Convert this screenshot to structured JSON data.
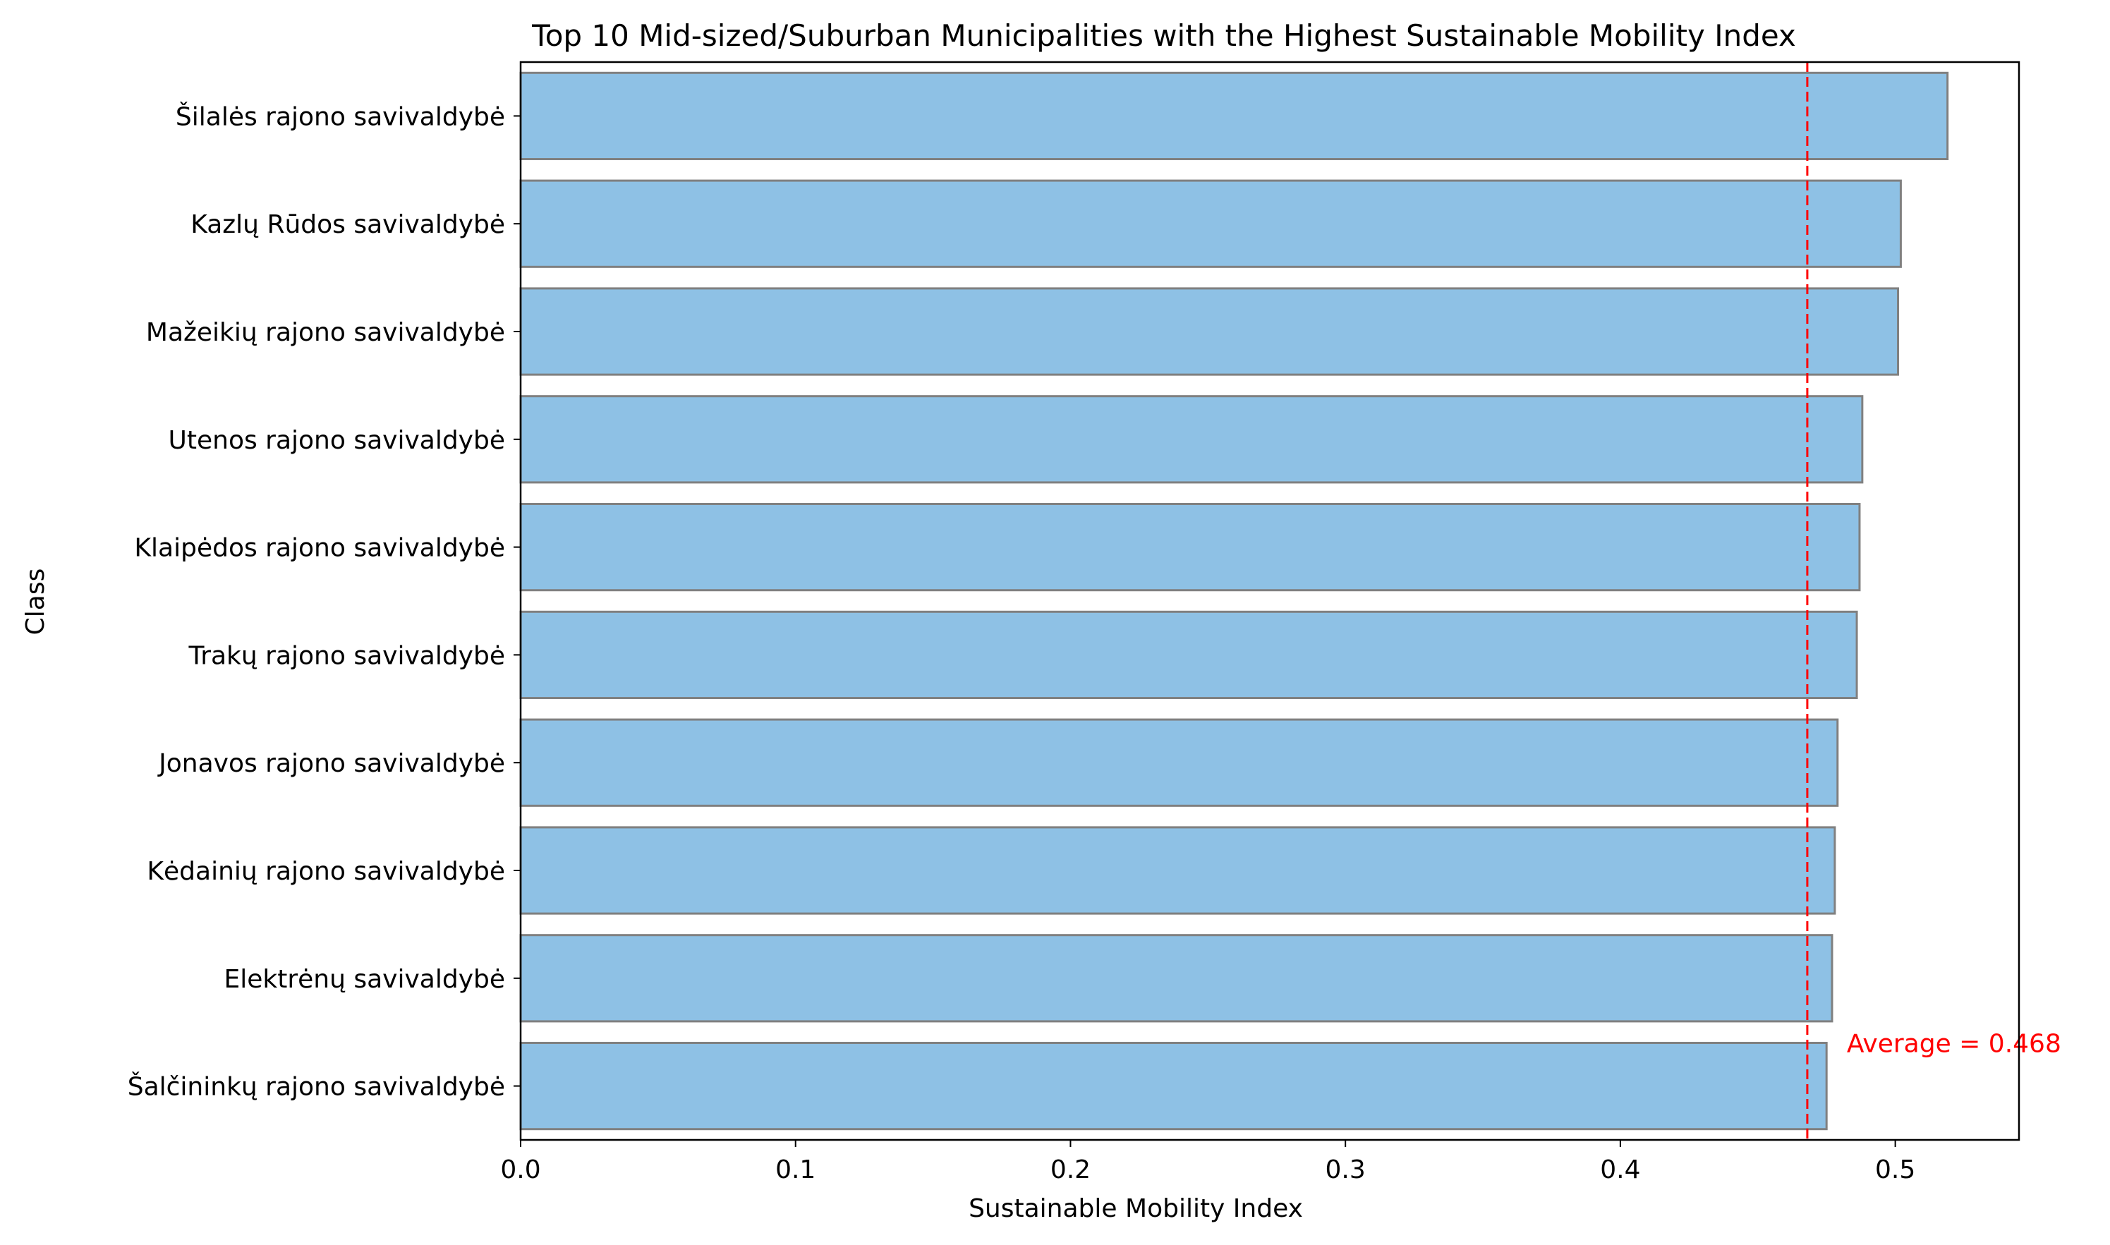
{
  "chart_data": {
    "type": "bar",
    "orientation": "horizontal",
    "title": "Top 10 Mid-sized/Suburban Municipalities with the Highest Sustainable Mobility Index",
    "xlabel": "Sustainable Mobility Index",
    "ylabel": "Class",
    "categories": [
      "Šilalės rajono savivaldybė",
      "Kazlų Rūdos savivaldybė",
      "Mažeikių rajono savivaldybė",
      "Utenos rajono savivaldybė",
      "Klaipėdos rajono savivaldybė",
      "Trakų rajono savivaldybė",
      "Jonavos rajono savivaldybė",
      "Kėdainių rajono savivaldybė",
      "Elektrėnų savivaldybė",
      "Šalčininkų rajono savivaldybė"
    ],
    "values": [
      0.519,
      0.502,
      0.501,
      0.488,
      0.487,
      0.486,
      0.479,
      0.478,
      0.477,
      0.475
    ],
    "xlim": [
      0,
      0.545
    ],
    "xticks": [
      0.0,
      0.1,
      0.2,
      0.3,
      0.4,
      0.5
    ],
    "xtick_labels": [
      "0.0",
      "0.1",
      "0.2",
      "0.3",
      "0.4",
      "0.5"
    ],
    "reference_line": {
      "value": 0.468,
      "label": "Average = 0.468",
      "color": "#ff0000",
      "style": "dashed"
    },
    "bar_color": "#8ec1e5",
    "bar_edge_color": "#808080",
    "grid": false
  }
}
